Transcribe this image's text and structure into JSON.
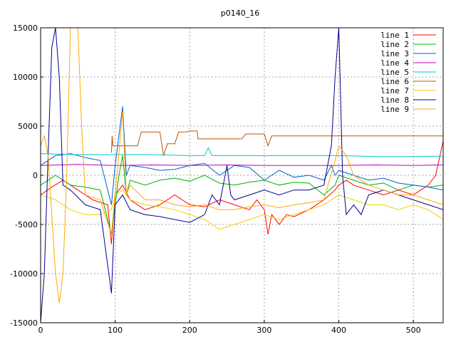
{
  "chart_data": {
    "type": "line",
    "title": "p0140_16",
    "xlabel": "",
    "ylabel": "",
    "xlim": [
      0,
      540
    ],
    "ylim": [
      -15000,
      15000
    ],
    "x_ticks": [
      0,
      100,
      200,
      300,
      400,
      500
    ],
    "y_ticks": [
      -15000,
      -10000,
      -5000,
      0,
      5000,
      10000,
      15000
    ],
    "grid": true,
    "legend_position": "top-right",
    "series": [
      {
        "name": "line 1",
        "color": "#ff0000",
        "points": [
          [
            0,
            -2000
          ],
          [
            15,
            -1200
          ],
          [
            30,
            -500
          ],
          [
            50,
            -1500
          ],
          [
            70,
            -2500
          ],
          [
            90,
            -3000
          ],
          [
            95,
            -7000
          ],
          [
            100,
            -2000
          ],
          [
            110,
            -1000
          ],
          [
            120,
            -2500
          ],
          [
            140,
            -3500
          ],
          [
            160,
            -3000
          ],
          [
            180,
            -2000
          ],
          [
            200,
            -3000
          ],
          [
            220,
            -3200
          ],
          [
            240,
            -2500
          ],
          [
            260,
            -3000
          ],
          [
            280,
            -3500
          ],
          [
            290,
            -2500
          ],
          [
            300,
            -3500
          ],
          [
            305,
            -6000
          ],
          [
            310,
            -4000
          ],
          [
            320,
            -5000
          ],
          [
            330,
            -4000
          ],
          [
            340,
            -4200
          ],
          [
            360,
            -3500
          ],
          [
            380,
            -2500
          ],
          [
            395,
            -1500
          ],
          [
            400,
            -1000
          ],
          [
            410,
            -500
          ],
          [
            420,
            -1000
          ],
          [
            440,
            -1500
          ],
          [
            460,
            -2000
          ],
          [
            480,
            -1500
          ],
          [
            500,
            -2000
          ],
          [
            520,
            -1000
          ],
          [
            530,
            0
          ],
          [
            540,
            3500
          ]
        ]
      },
      {
        "name": "line 2",
        "color": "#00b000",
        "points": [
          [
            0,
            -1000
          ],
          [
            10,
            -500
          ],
          [
            20,
            0
          ],
          [
            40,
            -1000
          ],
          [
            60,
            -1200
          ],
          [
            80,
            -1500
          ],
          [
            95,
            -6000
          ],
          [
            100,
            -3000
          ],
          [
            105,
            0
          ],
          [
            110,
            2000
          ],
          [
            115,
            -2000
          ],
          [
            120,
            -500
          ],
          [
            140,
            -1000
          ],
          [
            160,
            -500
          ],
          [
            180,
            -300
          ],
          [
            200,
            -600
          ],
          [
            220,
            0
          ],
          [
            240,
            -800
          ],
          [
            260,
            -1000
          ],
          [
            280,
            -700
          ],
          [
            300,
            -500
          ],
          [
            320,
            -1000
          ],
          [
            340,
            -700
          ],
          [
            360,
            -800
          ],
          [
            380,
            -2000
          ],
          [
            395,
            -1000
          ],
          [
            400,
            0
          ],
          [
            420,
            -500
          ],
          [
            440,
            -1000
          ],
          [
            460,
            -800
          ],
          [
            480,
            -1500
          ],
          [
            500,
            -1000
          ],
          [
            520,
            -1200
          ],
          [
            540,
            -1000
          ]
        ]
      },
      {
        "name": "line 3",
        "color": "#0060d0",
        "points": [
          [
            0,
            1000
          ],
          [
            10,
            1500
          ],
          [
            20,
            2000
          ],
          [
            40,
            2200
          ],
          [
            60,
            1800
          ],
          [
            80,
            1500
          ],
          [
            95,
            -3000
          ],
          [
            100,
            1000
          ],
          [
            110,
            7000
          ],
          [
            115,
            0
          ],
          [
            120,
            1000
          ],
          [
            140,
            800
          ],
          [
            160,
            500
          ],
          [
            180,
            600
          ],
          [
            200,
            1000
          ],
          [
            220,
            1200
          ],
          [
            240,
            0
          ],
          [
            260,
            1000
          ],
          [
            280,
            800
          ],
          [
            300,
            -500
          ],
          [
            320,
            500
          ],
          [
            340,
            -200
          ],
          [
            360,
            0
          ],
          [
            380,
            -500
          ],
          [
            390,
            1000
          ],
          [
            395,
            0
          ],
          [
            400,
            500
          ],
          [
            420,
            0
          ],
          [
            440,
            -500
          ],
          [
            460,
            -300
          ],
          [
            480,
            -800
          ],
          [
            500,
            -1000
          ],
          [
            520,
            -1200
          ],
          [
            540,
            -1500
          ]
        ]
      },
      {
        "name": "line 4",
        "color": "#c000c0",
        "points": [
          [
            0,
            1000
          ],
          [
            50,
            1100
          ],
          [
            100,
            1000
          ],
          [
            150,
            1050
          ],
          [
            200,
            1000
          ],
          [
            250,
            1050
          ],
          [
            300,
            1000
          ],
          [
            350,
            1000
          ],
          [
            400,
            1000
          ],
          [
            450,
            1050
          ],
          [
            500,
            1000
          ],
          [
            540,
            1050
          ]
        ]
      },
      {
        "name": "line 5",
        "color": "#00c8c8",
        "points": [
          [
            0,
            2200
          ],
          [
            50,
            2100
          ],
          [
            100,
            2100
          ],
          [
            150,
            2100
          ],
          [
            200,
            2000
          ],
          [
            220,
            2000
          ],
          [
            225,
            2800
          ],
          [
            230,
            2000
          ],
          [
            280,
            2000
          ],
          [
            300,
            2000
          ],
          [
            350,
            2000
          ],
          [
            400,
            2000
          ],
          [
            450,
            1900
          ],
          [
            500,
            1900
          ],
          [
            540,
            1950
          ]
        ]
      },
      {
        "name": "line 6",
        "color": "#c05000",
        "points": [
          [
            95,
            2300
          ],
          [
            96,
            4000
          ],
          [
            97,
            3000
          ],
          [
            120,
            3000
          ],
          [
            130,
            3000
          ],
          [
            135,
            4400
          ],
          [
            160,
            4400
          ],
          [
            165,
            2000
          ],
          [
            170,
            3200
          ],
          [
            180,
            3200
          ],
          [
            185,
            4400
          ],
          [
            195,
            4400
          ],
          [
            200,
            4500
          ],
          [
            210,
            4500
          ],
          [
            211,
            3700
          ],
          [
            260,
            3700
          ],
          [
            270,
            3700
          ],
          [
            275,
            4200
          ],
          [
            300,
            4200
          ],
          [
            305,
            3000
          ],
          [
            310,
            4000
          ],
          [
            350,
            4000
          ],
          [
            400,
            4000
          ],
          [
            450,
            4000
          ],
          [
            500,
            4000
          ],
          [
            540,
            4000
          ]
        ]
      },
      {
        "name": "line 7",
        "color": "#f0d000",
        "points": [
          [
            0,
            -2000
          ],
          [
            20,
            -2500
          ],
          [
            40,
            -3500
          ],
          [
            60,
            -4000
          ],
          [
            80,
            -4000
          ],
          [
            95,
            -3500
          ],
          [
            100,
            -2000
          ],
          [
            110,
            -1500
          ],
          [
            120,
            -2500
          ],
          [
            140,
            -3000
          ],
          [
            160,
            -3200
          ],
          [
            180,
            -3500
          ],
          [
            200,
            -4000
          ],
          [
            220,
            -4500
          ],
          [
            240,
            -5500
          ],
          [
            260,
            -5000
          ],
          [
            280,
            -4500
          ],
          [
            300,
            -4000
          ],
          [
            320,
            -4500
          ],
          [
            340,
            -4000
          ],
          [
            360,
            -3500
          ],
          [
            380,
            -3000
          ],
          [
            400,
            -2000
          ],
          [
            420,
            -2500
          ],
          [
            440,
            -3000
          ],
          [
            460,
            -3000
          ],
          [
            480,
            -3500
          ],
          [
            500,
            -3000
          ],
          [
            520,
            -3500
          ],
          [
            540,
            -4500
          ]
        ]
      },
      {
        "name": "line 8",
        "color": "#000090",
        "points": [
          [
            0,
            -15000
          ],
          [
            5,
            -10000
          ],
          [
            10,
            2000
          ],
          [
            15,
            13000
          ],
          [
            20,
            15000
          ],
          [
            25,
            10000
          ],
          [
            30,
            -1000
          ],
          [
            40,
            -1500
          ],
          [
            60,
            -3000
          ],
          [
            80,
            -3500
          ],
          [
            95,
            -12000
          ],
          [
            100,
            -3000
          ],
          [
            110,
            -2000
          ],
          [
            120,
            -3500
          ],
          [
            140,
            -4000
          ],
          [
            160,
            -4200
          ],
          [
            180,
            -4500
          ],
          [
            200,
            -4800
          ],
          [
            220,
            -4000
          ],
          [
            230,
            -2000
          ],
          [
            240,
            -3000
          ],
          [
            250,
            1000
          ],
          [
            255,
            -2000
          ],
          [
            260,
            -2500
          ],
          [
            280,
            -2000
          ],
          [
            300,
            -1500
          ],
          [
            320,
            -2000
          ],
          [
            340,
            -1500
          ],
          [
            360,
            -1500
          ],
          [
            380,
            -1000
          ],
          [
            390,
            3000
          ],
          [
            395,
            10000
          ],
          [
            400,
            15000
          ],
          [
            405,
            0
          ],
          [
            410,
            -4000
          ],
          [
            420,
            -3000
          ],
          [
            430,
            -4000
          ],
          [
            440,
            -2000
          ],
          [
            460,
            -1500
          ],
          [
            480,
            -2000
          ],
          [
            500,
            -2500
          ],
          [
            520,
            -3000
          ],
          [
            540,
            -3500
          ]
        ]
      },
      {
        "name": "line 9",
        "color": "#ffa800",
        "points": [
          [
            0,
            3000
          ],
          [
            5,
            4000
          ],
          [
            10,
            2000
          ],
          [
            20,
            -10000
          ],
          [
            25,
            -13000
          ],
          [
            30,
            -10000
          ],
          [
            35,
            0
          ],
          [
            40,
            15000
          ],
          [
            50,
            15000
          ],
          [
            55,
            5000
          ],
          [
            60,
            -2000
          ],
          [
            80,
            -2500
          ],
          [
            95,
            -6000
          ],
          [
            100,
            -2000
          ],
          [
            110,
            6500
          ],
          [
            115,
            -2000
          ],
          [
            120,
            -1000
          ],
          [
            140,
            -2500
          ],
          [
            160,
            -2500
          ],
          [
            180,
            -3000
          ],
          [
            200,
            -3200
          ],
          [
            220,
            -3000
          ],
          [
            240,
            -3500
          ],
          [
            260,
            -3500
          ],
          [
            280,
            -3200
          ],
          [
            300,
            -3000
          ],
          [
            320,
            -3300
          ],
          [
            340,
            -3000
          ],
          [
            360,
            -2800
          ],
          [
            380,
            -2500
          ],
          [
            395,
            1500
          ],
          [
            400,
            3000
          ],
          [
            410,
            2000
          ],
          [
            420,
            0
          ],
          [
            440,
            -1000
          ],
          [
            460,
            -1500
          ],
          [
            480,
            -2000
          ],
          [
            500,
            -2000
          ],
          [
            520,
            -2500
          ],
          [
            540,
            -3000
          ]
        ]
      }
    ]
  }
}
